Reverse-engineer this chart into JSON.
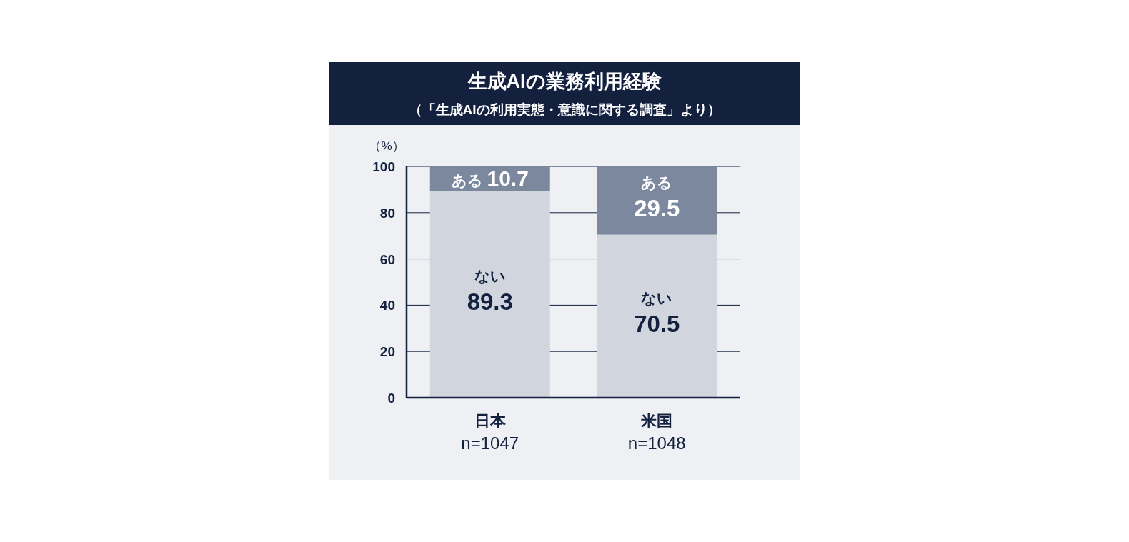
{
  "chart_data": {
    "type": "bar",
    "title": "生成AIの業務利用経験",
    "subtitle": "（「生成AIの利用実態・意識に関する調査」より）",
    "ylabel": "（%）",
    "categories": [
      "日本\nn=1047",
      "米国\nn=1048"
    ],
    "series": [
      {
        "name": "ない",
        "color": "#d0d5de",
        "values": [
          89.3,
          70.5
        ]
      },
      {
        "name": "ある",
        "color": "#7b889e",
        "values": [
          10.7,
          29.5
        ]
      }
    ],
    "stacked": true,
    "ylim": [
      0,
      100
    ],
    "yticks": [
      0,
      20,
      40,
      60,
      80,
      100
    ],
    "grid": "y",
    "data_labels": true
  }
}
